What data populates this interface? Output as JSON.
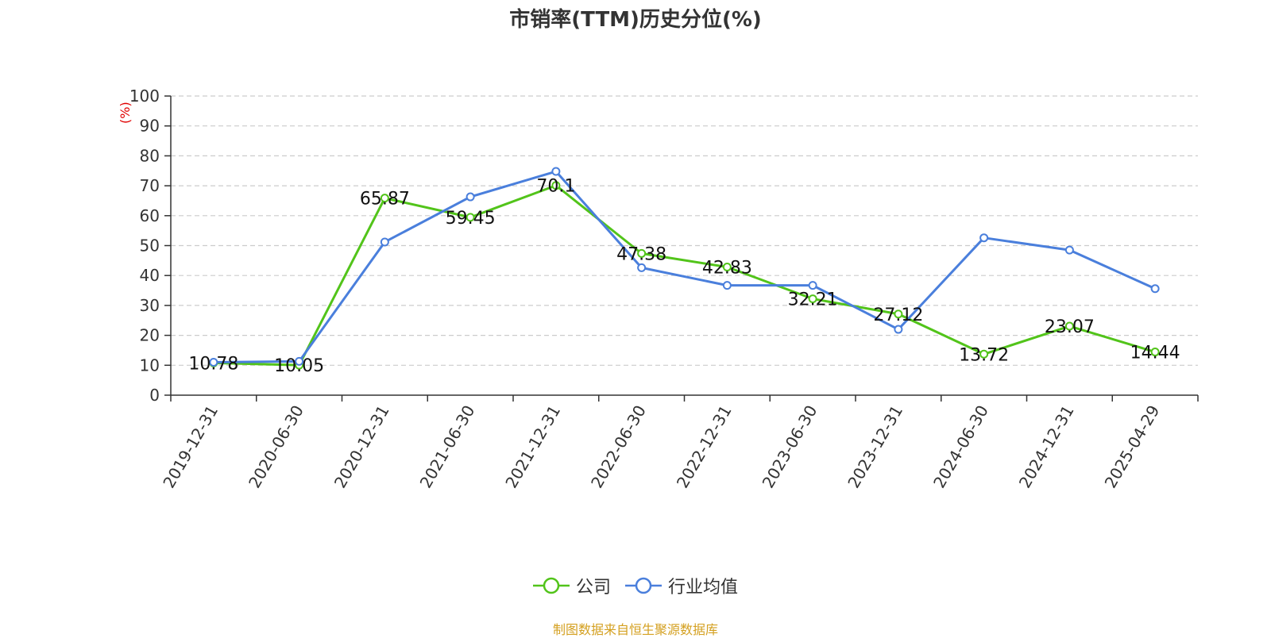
{
  "chart_data": {
    "type": "line",
    "title": "市销率(TTM)历史分位(%)",
    "ylabel": "(%)",
    "ylim": [
      0,
      100
    ],
    "yticks": [
      0,
      10,
      20,
      30,
      40,
      50,
      60,
      70,
      80,
      90,
      100
    ],
    "categories": [
      "2019-12-31",
      "2020-06-30",
      "2020-12-31",
      "2021-06-30",
      "2021-12-31",
      "2022-06-30",
      "2022-12-31",
      "2023-06-30",
      "2023-12-31",
      "2024-06-30",
      "2024-12-31",
      "2025-04-29"
    ],
    "series": [
      {
        "name": "公司",
        "color": "#52c41a",
        "values": [
          10.78,
          10.05,
          65.87,
          59.45,
          70.1,
          47.38,
          42.83,
          32.21,
          27.12,
          13.72,
          23.07,
          14.44
        ],
        "labels": [
          "10.78",
          "10.05",
          "65.87",
          "59.45",
          "70.1",
          "47.38",
          "42.83",
          "32.21",
          "27.12",
          "13.72",
          "23.07",
          "14.44"
        ]
      },
      {
        "name": "行业均值",
        "color": "#4a7fdc",
        "values": [
          11.0,
          11.3,
          51.2,
          66.3,
          74.8,
          42.6,
          36.7,
          36.7,
          22.0,
          52.6,
          48.5,
          35.6
        ],
        "labels": []
      }
    ],
    "grid": true,
    "legend_position": "bottom-center"
  },
  "source_note": "制图数据来自恒生聚源数据库"
}
